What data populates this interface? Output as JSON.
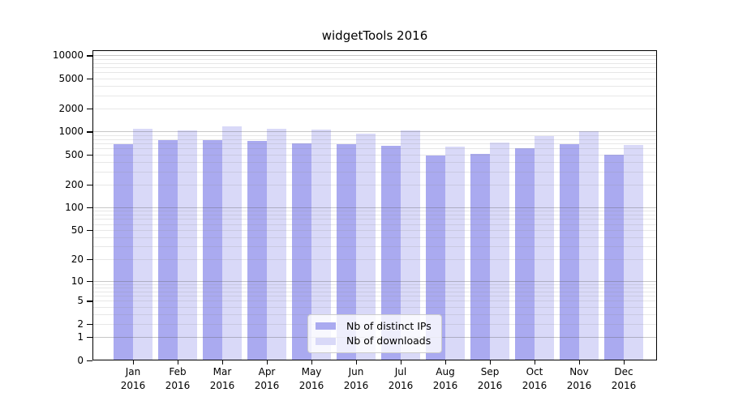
{
  "chart_data": {
    "type": "bar",
    "title": "widgetTools 2016",
    "categories": [
      {
        "month": "Jan",
        "year": "2016"
      },
      {
        "month": "Feb",
        "year": "2016"
      },
      {
        "month": "Mar",
        "year": "2016"
      },
      {
        "month": "Apr",
        "year": "2016"
      },
      {
        "month": "May",
        "year": "2016"
      },
      {
        "month": "Jun",
        "year": "2016"
      },
      {
        "month": "Jul",
        "year": "2016"
      },
      {
        "month": "Aug",
        "year": "2016"
      },
      {
        "month": "Sep",
        "year": "2016"
      },
      {
        "month": "Oct",
        "year": "2016"
      },
      {
        "month": "Nov",
        "year": "2016"
      },
      {
        "month": "Dec",
        "year": "2016"
      }
    ],
    "series": [
      {
        "name": "Nb of distinct IPs",
        "color": "#aaaaf0",
        "values": [
          675,
          775,
          765,
          745,
          700,
          675,
          655,
          490,
          515,
          610,
          690,
          500
        ]
      },
      {
        "name": "Nb of downloads",
        "color": "#d9d9f8",
        "values": [
          1085,
          1030,
          1175,
          1100,
          1065,
          940,
          1040,
          635,
          710,
          865,
          1010,
          670
        ]
      }
    ],
    "y_axis": {
      "scale": "log10(v+1)",
      "tick_labels": [
        "10000",
        "5000",
        "2000",
        "1000",
        "500",
        "200",
        "100",
        "50",
        "20",
        "10",
        "5",
        "2",
        "1",
        "0"
      ],
      "top_value": 11600
    },
    "grid": "horizontal major+minor, drawn over bars",
    "legend_position": "lower center",
    "colors": {
      "background": "#ffffff",
      "axis": "#000000",
      "grid_major": "#c7c7c7",
      "grid_minor": "#e7e7e7"
    }
  }
}
